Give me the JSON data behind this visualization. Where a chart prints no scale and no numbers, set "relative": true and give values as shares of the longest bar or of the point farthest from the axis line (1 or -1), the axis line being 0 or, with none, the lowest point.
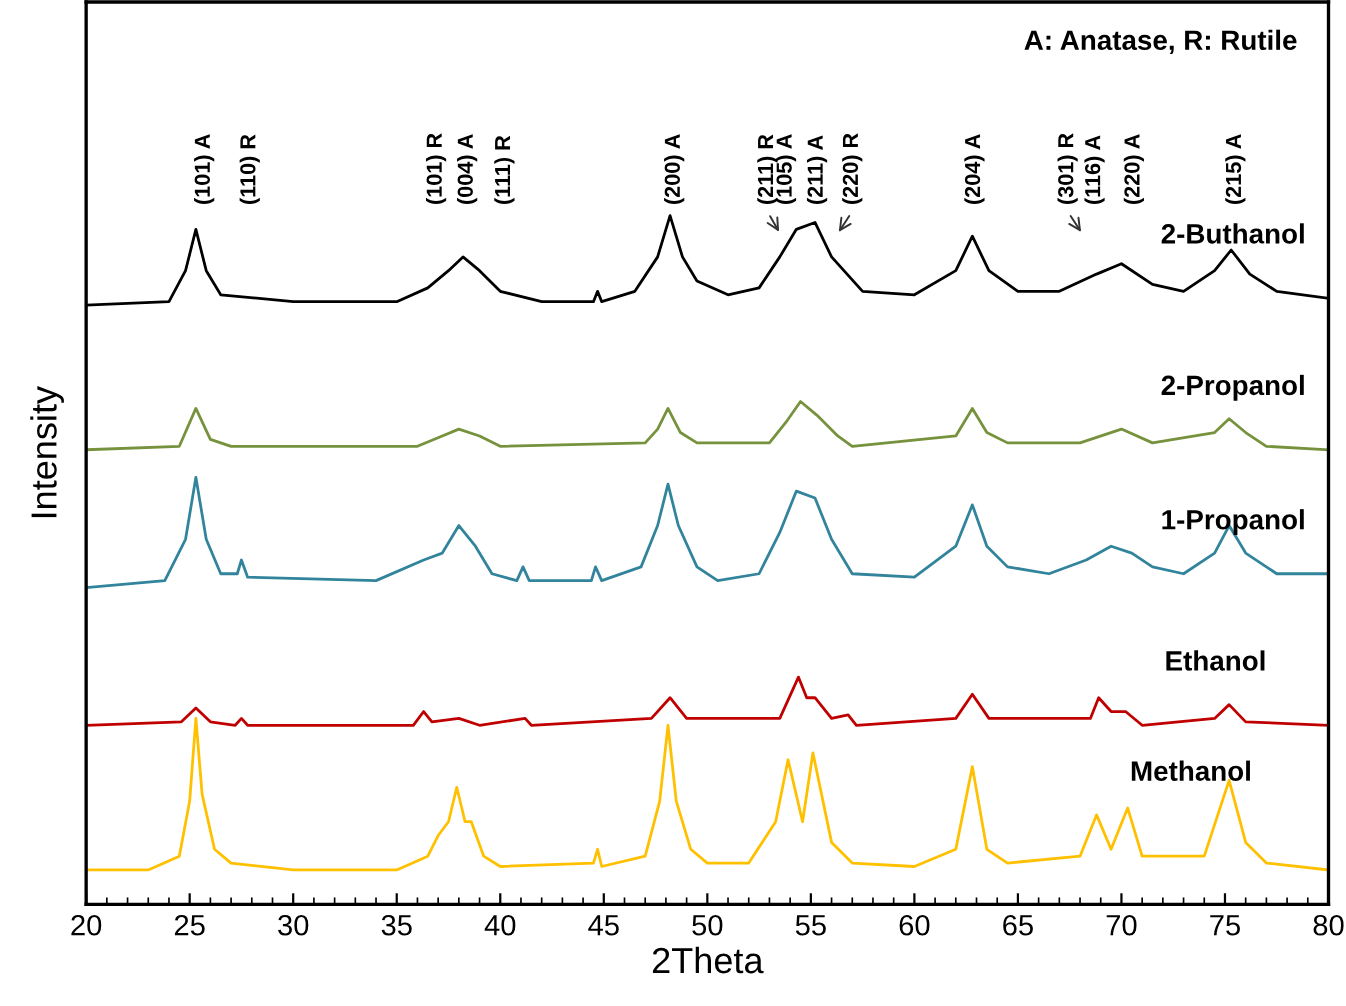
{
  "chart_data": {
    "type": "line",
    "relative": true,
    "xlabel": "2Theta",
    "ylabel": "Intensity",
    "xlim": [
      20,
      80
    ],
    "xticks": [
      20,
      25,
      30,
      35,
      40,
      45,
      50,
      55,
      60,
      65,
      70,
      75,
      80
    ],
    "grid": false,
    "legend": false,
    "marker": "none",
    "line_style": "solid",
    "series": [
      {
        "name": "2-Buthanol",
        "color": "#000000",
        "x": [
          20,
          24,
          24.8,
          25.3,
          25.8,
          26.5,
          30,
          35,
          36.5,
          37.5,
          38.2,
          39,
          40,
          42,
          44.5,
          44.7,
          44.9,
          46.5,
          47.6,
          48.2,
          48.8,
          49.5,
          51,
          52.5,
          53.5,
          54.3,
          55.2,
          56,
          57.5,
          60,
          62,
          62.8,
          63.6,
          65,
          67,
          68.8,
          70,
          71.5,
          73,
          74.5,
          75.3,
          76.2,
          77.5,
          80
        ],
        "values": [
          0.87,
          0.875,
          0.92,
          0.98,
          0.92,
          0.885,
          0.875,
          0.875,
          0.895,
          0.92,
          0.94,
          0.92,
          0.89,
          0.875,
          0.875,
          0.89,
          0.875,
          0.89,
          0.94,
          1.0,
          0.94,
          0.905,
          0.885,
          0.895,
          0.94,
          0.98,
          0.99,
          0.94,
          0.89,
          0.885,
          0.92,
          0.97,
          0.92,
          0.89,
          0.89,
          0.915,
          0.93,
          0.9,
          0.89,
          0.92,
          0.95,
          0.915,
          0.89,
          0.88
        ]
      },
      {
        "name": "2-Propanol",
        "color": "#76923c",
        "x": [
          20,
          24.5,
          25.3,
          26,
          27,
          36,
          37.2,
          38,
          39,
          40,
          47,
          47.6,
          48.1,
          48.7,
          49.5,
          53,
          53.8,
          54.5,
          55.3,
          56.3,
          57,
          62,
          62.8,
          63.5,
          64.5,
          68,
          70,
          71.5,
          74.5,
          75.2,
          76,
          77,
          80
        ],
        "values": [
          0.66,
          0.665,
          0.72,
          0.675,
          0.665,
          0.665,
          0.68,
          0.69,
          0.68,
          0.665,
          0.67,
          0.69,
          0.72,
          0.685,
          0.67,
          0.67,
          0.7,
          0.73,
          0.71,
          0.68,
          0.665,
          0.68,
          0.72,
          0.685,
          0.67,
          0.67,
          0.69,
          0.67,
          0.685,
          0.705,
          0.685,
          0.665,
          0.66
        ]
      },
      {
        "name": "1-Propanol",
        "color": "#31849b",
        "x": [
          20,
          23.8,
          24.8,
          25.3,
          25.8,
          26.5,
          27.3,
          27.5,
          27.8,
          34,
          36.3,
          37.2,
          38,
          38.8,
          39.6,
          40.8,
          41.1,
          41.4,
          44.4,
          44.6,
          44.9,
          46.8,
          47.6,
          48.1,
          48.6,
          49.5,
          50.5,
          52.5,
          53.5,
          54.3,
          55.2,
          56,
          57,
          60,
          62,
          62.8,
          63.5,
          64.5,
          66.5,
          68.3,
          69.5,
          70.5,
          71.5,
          73,
          74.5,
          75.2,
          76,
          77.5,
          80
        ],
        "values": [
          0.46,
          0.47,
          0.53,
          0.62,
          0.53,
          0.48,
          0.48,
          0.5,
          0.475,
          0.47,
          0.5,
          0.51,
          0.55,
          0.52,
          0.48,
          0.47,
          0.49,
          0.47,
          0.47,
          0.49,
          0.47,
          0.49,
          0.55,
          0.61,
          0.55,
          0.49,
          0.47,
          0.48,
          0.54,
          0.6,
          0.59,
          0.53,
          0.48,
          0.475,
          0.52,
          0.58,
          0.52,
          0.49,
          0.48,
          0.5,
          0.52,
          0.51,
          0.49,
          0.48,
          0.51,
          0.55,
          0.51,
          0.48,
          0.48
        ]
      },
      {
        "name": "Ethanol",
        "color": "#c00000",
        "x": [
          20,
          24.6,
          25.3,
          26,
          27.2,
          27.5,
          27.8,
          35.8,
          36.3,
          36.7,
          38,
          39,
          41.2,
          41.5,
          47.3,
          48.2,
          49,
          53.5,
          54.4,
          54.8,
          55.2,
          56,
          56.8,
          57.2,
          62,
          62.8,
          63.6,
          68.5,
          68.9,
          69.5,
          70.2,
          71,
          74.5,
          75.2,
          76,
          80
        ],
        "values": [
          0.26,
          0.265,
          0.285,
          0.265,
          0.26,
          0.27,
          0.26,
          0.26,
          0.28,
          0.265,
          0.27,
          0.26,
          0.27,
          0.26,
          0.27,
          0.3,
          0.27,
          0.27,
          0.33,
          0.3,
          0.3,
          0.27,
          0.275,
          0.26,
          0.27,
          0.305,
          0.27,
          0.27,
          0.3,
          0.28,
          0.28,
          0.26,
          0.27,
          0.29,
          0.265,
          0.26
        ]
      },
      {
        "name": "Methanol",
        "color": "#ffc000",
        "x": [
          20,
          23,
          24.5,
          25,
          25.3,
          25.6,
          26.2,
          27,
          30,
          35,
          36.5,
          37,
          37.5,
          37.9,
          38.3,
          38.6,
          39.2,
          40,
          44.5,
          44.7,
          44.9,
          47,
          47.7,
          48.1,
          48.5,
          49.2,
          50,
          52,
          53.3,
          53.9,
          54.6,
          55.1,
          56,
          57,
          60,
          62,
          62.8,
          63.5,
          64.5,
          68,
          68.8,
          69.5,
          70.3,
          71,
          74,
          75.2,
          76,
          77,
          80
        ],
        "values": [
          0.05,
          0.05,
          0.07,
          0.15,
          0.27,
          0.16,
          0.08,
          0.06,
          0.05,
          0.05,
          0.07,
          0.1,
          0.12,
          0.17,
          0.12,
          0.12,
          0.07,
          0.055,
          0.06,
          0.08,
          0.055,
          0.07,
          0.15,
          0.26,
          0.15,
          0.08,
          0.06,
          0.06,
          0.12,
          0.21,
          0.12,
          0.22,
          0.09,
          0.06,
          0.055,
          0.08,
          0.2,
          0.08,
          0.06,
          0.07,
          0.13,
          0.08,
          0.14,
          0.07,
          0.07,
          0.18,
          0.09,
          0.06,
          0.05
        ]
      }
    ],
    "annotations": [
      "(101) A",
      "(110) R",
      "(101) R",
      "(004) A",
      "(111) R",
      "(200) A",
      "(211) R",
      "(105) A",
      "(211) A",
      "(220) R",
      "(204) A",
      "(301) R",
      "(116) A",
      "(220) A",
      "(215) A",
      "A: Anatase, R: Rutile"
    ]
  }
}
